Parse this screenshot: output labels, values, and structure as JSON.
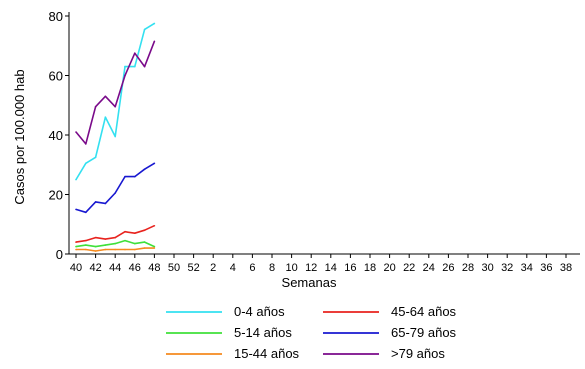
{
  "chart_data": {
    "type": "line",
    "xlabel": "Semanas",
    "ylabel": "Casos por 100.000 hab",
    "ylim": [
      0,
      80
    ],
    "y_ticks": [
      0,
      20,
      40,
      60,
      80
    ],
    "x_tick_labels": [
      "40",
      "42",
      "44",
      "46",
      "48",
      "50",
      "52",
      "2",
      "4",
      "6",
      "8",
      "10",
      "12",
      "14",
      "16",
      "18",
      "20",
      "22",
      "24",
      "26",
      "28",
      "30",
      "32",
      "34",
      "36",
      "38"
    ],
    "x": [
      40,
      41,
      42,
      43,
      44,
      45,
      46,
      47,
      48
    ],
    "grid": false,
    "legend_position": "bottom",
    "series": [
      {
        "name": "0-4 años",
        "color": "#33e0f0",
        "values": [
          25,
          30.5,
          32.5,
          46,
          39.5,
          63,
          63,
          75.5,
          77.5
        ]
      },
      {
        "name": "45-64 años",
        "color": "#e8231e",
        "values": [
          4,
          4.5,
          5.5,
          5,
          5.5,
          7.5,
          7,
          8,
          9.5
        ]
      },
      {
        "name": "5-14 años",
        "color": "#3fe03a",
        "values": [
          2.5,
          3,
          2.5,
          3,
          3.5,
          4.5,
          3.5,
          4,
          2.5
        ]
      },
      {
        "name": "65-79 años",
        "color": "#1818d0",
        "values": [
          15,
          14,
          17.5,
          17,
          20.5,
          26,
          26,
          28.5,
          30.5
        ]
      },
      {
        "name": "15-44 años",
        "color": "#f58a1e",
        "values": [
          1.5,
          1.5,
          1,
          1.5,
          1.5,
          1.5,
          1.5,
          2,
          2
        ]
      },
      {
        "name": ">79 años",
        "color": "#7a0a8a",
        "values": [
          41,
          37,
          49.5,
          53,
          49.5,
          60,
          67.5,
          63,
          71.5
        ]
      }
    ]
  }
}
